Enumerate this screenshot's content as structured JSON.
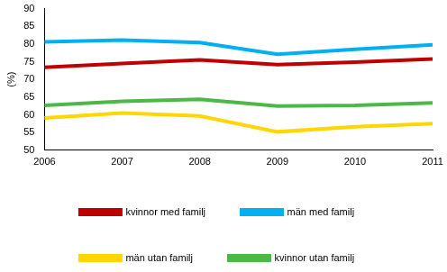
{
  "chart_data": {
    "type": "line",
    "y_label": "(%)",
    "categories": [
      "2006",
      "2007",
      "2008",
      "2009",
      "2010",
      "2011"
    ],
    "series": [
      {
        "name": "kvinnor med familj",
        "color": "#c00000",
        "values": [
          73.4,
          74.5,
          75.5,
          74.2,
          74.9,
          75.8
        ]
      },
      {
        "name": "män med familj",
        "color": "#00b0f0",
        "values": [
          80.6,
          81.1,
          80.4,
          77.1,
          78.5,
          79.8
        ]
      },
      {
        "name": "män utan familj",
        "color": "#ffd700",
        "values": [
          59.1,
          60.5,
          59.7,
          55.2,
          56.6,
          57.5
        ]
      },
      {
        "name": "kvinnor utan familj",
        "color": "#4cb848",
        "values": [
          62.7,
          63.8,
          64.4,
          62.5,
          62.7,
          63.4
        ]
      }
    ],
    "ylim": [
      50,
      90
    ],
    "yticks": [
      50,
      55,
      60,
      65,
      70,
      75,
      80,
      85,
      90
    ],
    "grid": false,
    "legend": "bottom"
  }
}
